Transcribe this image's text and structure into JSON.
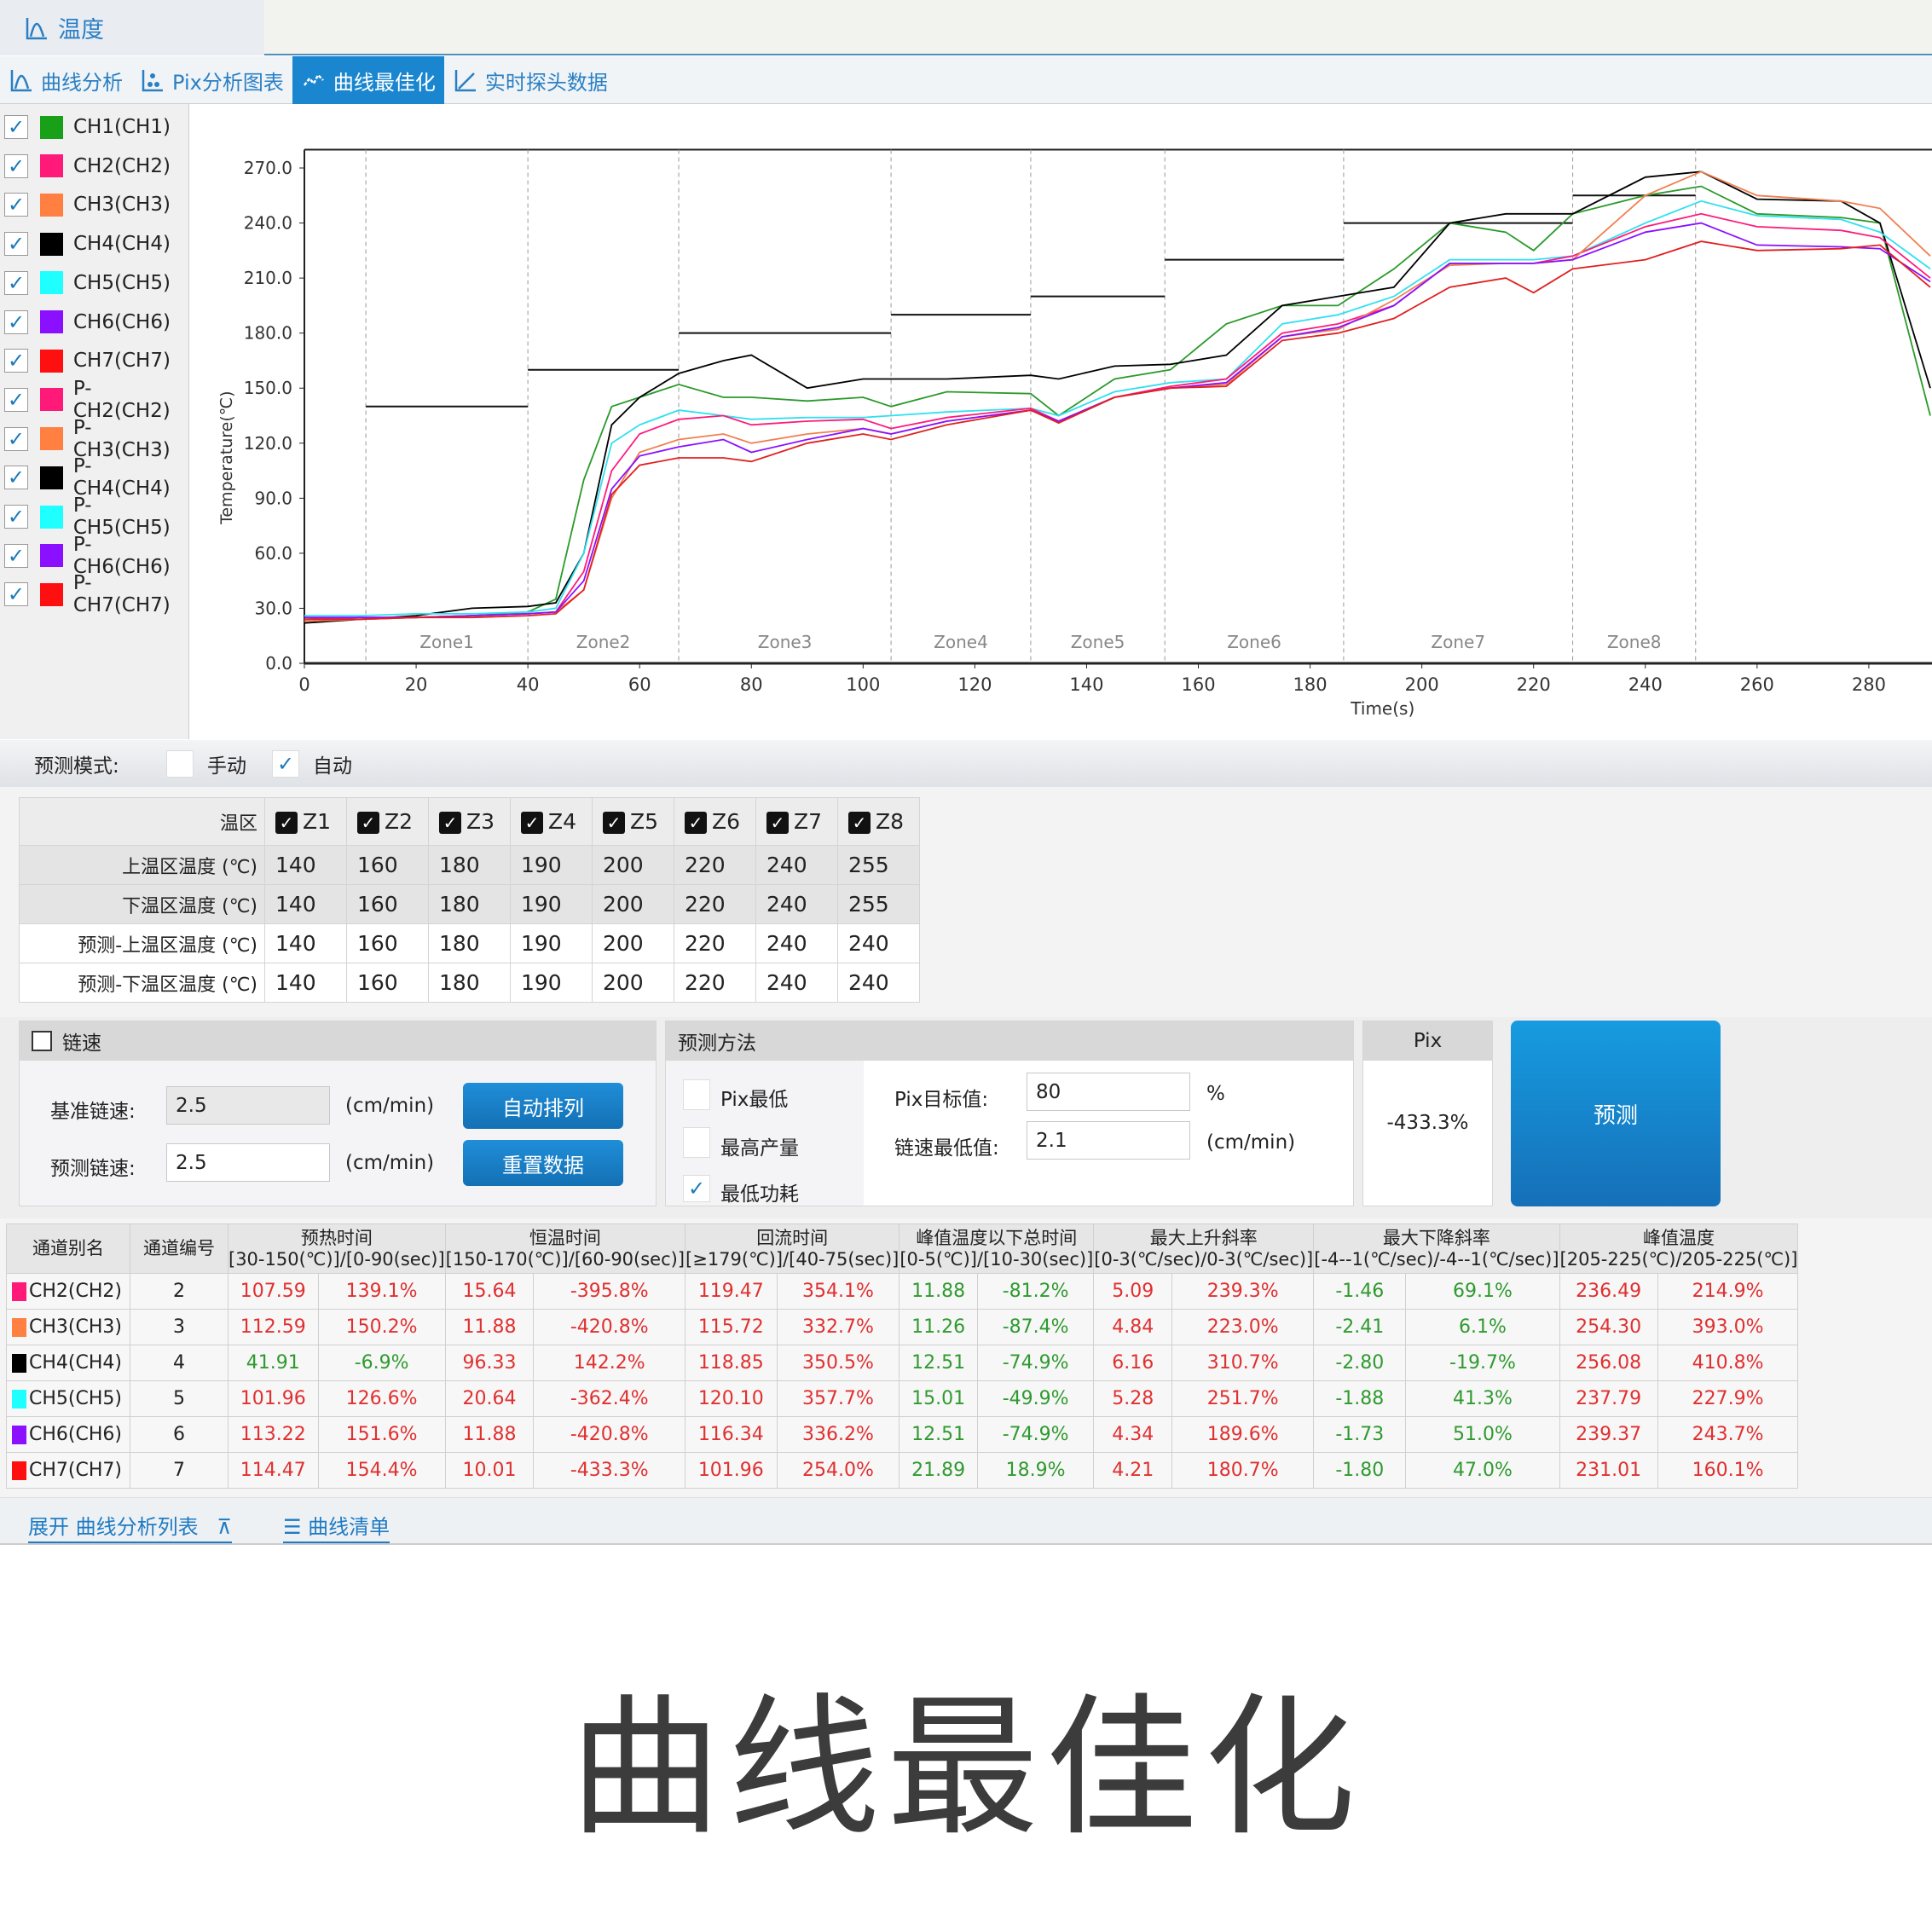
{
  "top_tab": {
    "label": "温度",
    "icon": "curve-icon"
  },
  "tabs": [
    {
      "label": "曲线分析",
      "icon": "curve-icon",
      "active": false
    },
    {
      "label": "Pix分析图表",
      "icon": "scatter-icon",
      "active": false
    },
    {
      "label": "曲线最佳化",
      "icon": "zigzag-icon",
      "active": true
    },
    {
      "label": "实时探头数据",
      "icon": "line-chart-icon",
      "active": false
    }
  ],
  "legend": [
    {
      "label": "CH1(CH1)",
      "color": "#18a018",
      "checked": true
    },
    {
      "label": "CH2(CH2)",
      "color": "#ff1a7a",
      "checked": true
    },
    {
      "label": "CH3(CH3)",
      "color": "#ff8040",
      "checked": true
    },
    {
      "label": "CH4(CH4)",
      "color": "#000000",
      "checked": true
    },
    {
      "label": "CH5(CH5)",
      "color": "#20ffff",
      "checked": true
    },
    {
      "label": "CH6(CH6)",
      "color": "#8a10ff",
      "checked": true
    },
    {
      "label": "CH7(CH7)",
      "color": "#ff1010",
      "checked": true
    },
    {
      "label": "P-CH2(CH2)",
      "color": "#ff1a7a",
      "checked": true
    },
    {
      "label": "P-CH3(CH3)",
      "color": "#ff8040",
      "checked": true
    },
    {
      "label": "P-CH4(CH4)",
      "color": "#000000",
      "checked": true
    },
    {
      "label": "P-CH5(CH5)",
      "color": "#20ffff",
      "checked": true
    },
    {
      "label": "P-CH6(CH6)",
      "color": "#8a10ff",
      "checked": true
    },
    {
      "label": "P-CH7(CH7)",
      "color": "#ff1010",
      "checked": true
    }
  ],
  "chart_data": {
    "type": "line",
    "xlabel": "Time(s)",
    "ylabel": "Temperature(℃)",
    "xlim": [
      0,
      291
    ],
    "ylim": [
      0,
      280
    ],
    "xticks": [
      0,
      20,
      40,
      60,
      80,
      100,
      120,
      140,
      160,
      180,
      200,
      220,
      240,
      260,
      280
    ],
    "yticks": [
      "0.0",
      "30.0",
      "60.0",
      "90.0",
      "120.0",
      "150.0",
      "180.0",
      "210.0",
      "240.0",
      "270.0"
    ],
    "grid": false,
    "zones": [
      {
        "label": "Zone1",
        "start": 11,
        "end": 40,
        "setpoint": 140
      },
      {
        "label": "Zone2",
        "start": 40,
        "end": 67,
        "setpoint": 160
      },
      {
        "label": "Zone3",
        "start": 67,
        "end": 105,
        "setpoint": 180
      },
      {
        "label": "Zone4",
        "start": 105,
        "end": 130,
        "setpoint": 190
      },
      {
        "label": "Zone5",
        "start": 130,
        "end": 154,
        "setpoint": 200
      },
      {
        "label": "Zone6",
        "start": 154,
        "end": 186,
        "setpoint": 220
      },
      {
        "label": "Zone7",
        "start": 186,
        "end": 227,
        "setpoint": 240
      },
      {
        "label": "Zone8",
        "start": 227,
        "end": 249,
        "setpoint": 255
      }
    ],
    "x": [
      0,
      10,
      20,
      30,
      40,
      45,
      50,
      55,
      60,
      67,
      75,
      80,
      90,
      100,
      105,
      115,
      130,
      135,
      145,
      155,
      165,
      175,
      185,
      195,
      205,
      215,
      220,
      227,
      240,
      250,
      260,
      275,
      282,
      291
    ],
    "series": [
      {
        "name": "CH1(CH1)",
        "color": "#2a9a2a",
        "values": [
          25,
          24,
          25,
          26,
          28,
          35,
          100,
          140,
          145,
          152,
          145,
          145,
          143,
          145,
          140,
          148,
          147,
          135,
          155,
          160,
          185,
          195,
          195,
          215,
          240,
          235,
          225,
          245,
          255,
          260,
          245,
          243,
          240,
          135
        ]
      },
      {
        "name": "CH4(CH4)",
        "color": "#000000",
        "values": [
          22,
          24,
          26,
          30,
          31,
          33,
          60,
          130,
          145,
          158,
          165,
          168,
          150,
          155,
          155,
          155,
          157,
          155,
          162,
          163,
          168,
          195,
          200,
          205,
          240,
          245,
          245,
          245,
          265,
          268,
          253,
          252,
          240,
          150
        ]
      },
      {
        "name": "CH5(CH5)",
        "color": "#30e0f0",
        "values": [
          26,
          26,
          27,
          27,
          28,
          30,
          60,
          120,
          130,
          138,
          135,
          133,
          134,
          134,
          135,
          137,
          139,
          135,
          148,
          153,
          155,
          185,
          190,
          200,
          220,
          220,
          220,
          222,
          240,
          252,
          244,
          242,
          235,
          215
        ]
      },
      {
        "name": "CH2(CH2)",
        "color": "#ff1a7a",
        "values": [
          24,
          25,
          25,
          26,
          27,
          28,
          50,
          105,
          125,
          133,
          135,
          130,
          132,
          133,
          128,
          134,
          139,
          132,
          145,
          151,
          155,
          180,
          185,
          195,
          218,
          218,
          218,
          222,
          238,
          245,
          238,
          236,
          232,
          210
        ]
      },
      {
        "name": "CH3(CH3)",
        "color": "#f08050",
        "values": [
          23,
          24,
          25,
          26,
          27,
          28,
          40,
          90,
          115,
          122,
          125,
          120,
          125,
          128,
          125,
          132,
          138,
          132,
          145,
          150,
          152,
          178,
          182,
          198,
          217,
          218,
          218,
          220,
          255,
          268,
          255,
          252,
          248,
          222
        ]
      },
      {
        "name": "CH6(CH6)",
        "color": "#8a10ff",
        "values": [
          25,
          25,
          25,
          26,
          27,
          28,
          45,
          95,
          113,
          118,
          122,
          115,
          122,
          128,
          125,
          132,
          138,
          132,
          145,
          150,
          153,
          178,
          183,
          195,
          218,
          218,
          218,
          220,
          235,
          240,
          228,
          227,
          226,
          208
        ]
      },
      {
        "name": "CH7(CH7)",
        "color": "#e02020",
        "values": [
          24,
          24,
          25,
          25,
          26,
          27,
          40,
          92,
          108,
          112,
          112,
          110,
          120,
          125,
          122,
          130,
          138,
          131,
          145,
          150,
          151,
          176,
          180,
          188,
          205,
          210,
          202,
          215,
          220,
          230,
          225,
          226,
          228,
          205
        ]
      }
    ]
  },
  "mode": {
    "label": "预测模式:",
    "options": [
      {
        "label": "手动",
        "checked": false
      },
      {
        "label": "自动",
        "checked": true
      }
    ]
  },
  "zone_table": {
    "header_label": "温区",
    "zones": [
      "Z1",
      "Z2",
      "Z3",
      "Z4",
      "Z5",
      "Z6",
      "Z7",
      "Z8"
    ],
    "rows": [
      {
        "label": "上温区温度 (℃)",
        "values": [
          "140",
          "160",
          "180",
          "190",
          "200",
          "220",
          "240",
          "255"
        ]
      },
      {
        "label": "下温区温度 (℃)",
        "values": [
          "140",
          "160",
          "180",
          "190",
          "200",
          "220",
          "240",
          "255"
        ]
      },
      {
        "label": "预测-上温区温度 (℃)",
        "values": [
          "140",
          "160",
          "180",
          "190",
          "200",
          "220",
          "240",
          "240"
        ]
      },
      {
        "label": "预测-下温区温度 (℃)",
        "values": [
          "140",
          "160",
          "180",
          "190",
          "200",
          "220",
          "240",
          "240"
        ]
      }
    ]
  },
  "chain": {
    "title": "链速",
    "checked": false,
    "base_label": "基准链速:",
    "base_value": "2.5",
    "pred_label": "预测链速:",
    "pred_value": "2.5",
    "unit": "(cm/min)",
    "auto_btn": "自动排列",
    "reset_btn": "重置数据"
  },
  "method": {
    "title": "预测方法",
    "options": [
      {
        "label": "Pix最低",
        "checked": false
      },
      {
        "label": "最高产量",
        "checked": false
      },
      {
        "label": "最低功耗",
        "checked": true
      }
    ],
    "pix_target_label": "Pix目标值:",
    "pix_target_value": "80",
    "pix_unit": "%",
    "min_speed_label": "链速最低值:",
    "min_speed_value": "2.1",
    "speed_unit": "(cm/min)"
  },
  "pix": {
    "title": "Pix",
    "value": "-433.3%"
  },
  "predict_btn": "预测",
  "results": {
    "col_alias": "通道别名",
    "col_num": "通道编号",
    "groups": [
      {
        "title": "预热时间",
        "range": "[30-150(℃)]/[0-90(sec)]"
      },
      {
        "title": "恒温时间",
        "range": "[150-170(℃)]/[60-90(sec)]"
      },
      {
        "title": "回流时间",
        "range": "[≥179(℃)]/[40-75(sec)]"
      },
      {
        "title": "峰值温度以下总时间",
        "range": "[0-5(℃)]/[10-30(sec)]"
      },
      {
        "title": "最大上升斜率",
        "range": "[0-3(℃/sec)/0-3(℃/sec)]"
      },
      {
        "title": "最大下降斜率",
        "range": "[-4--1(℃/sec)/-4--1(℃/sec)]"
      },
      {
        "title": "峰值温度",
        "range": "[205-225(℃)/205-225(℃)]"
      }
    ],
    "status_colors": {
      "ok": "#2f9a2f",
      "bad": "#e03030"
    },
    "rows": [
      {
        "name": "CH2(CH2)",
        "color": "#ff1a7a",
        "num": "2",
        "values": [
          "107.59",
          "139.1%",
          "15.64",
          "-395.8%",
          "119.47",
          "354.1%",
          "11.88",
          "-81.2%",
          "5.09",
          "239.3%",
          "-1.46",
          "69.1%",
          "236.49",
          "214.9%"
        ],
        "ok": [
          0,
          0,
          0,
          0,
          0,
          0,
          1,
          1,
          0,
          0,
          1,
          1,
          0,
          0
        ]
      },
      {
        "name": "CH3(CH3)",
        "color": "#ff8040",
        "num": "3",
        "values": [
          "112.59",
          "150.2%",
          "11.88",
          "-420.8%",
          "115.72",
          "332.7%",
          "11.26",
          "-87.4%",
          "4.84",
          "223.0%",
          "-2.41",
          "6.1%",
          "254.30",
          "393.0%"
        ],
        "ok": [
          0,
          0,
          0,
          0,
          0,
          0,
          1,
          1,
          0,
          0,
          1,
          1,
          0,
          0
        ]
      },
      {
        "name": "CH4(CH4)",
        "color": "#000000",
        "num": "4",
        "values": [
          "41.91",
          "-6.9%",
          "96.33",
          "142.2%",
          "118.85",
          "350.5%",
          "12.51",
          "-74.9%",
          "6.16",
          "310.7%",
          "-2.80",
          "-19.7%",
          "256.08",
          "410.8%"
        ],
        "ok": [
          1,
          1,
          0,
          0,
          0,
          0,
          1,
          1,
          0,
          0,
          1,
          1,
          0,
          0
        ]
      },
      {
        "name": "CH5(CH5)",
        "color": "#20ffff",
        "num": "5",
        "values": [
          "101.96",
          "126.6%",
          "20.64",
          "-362.4%",
          "120.10",
          "357.7%",
          "15.01",
          "-49.9%",
          "5.28",
          "251.7%",
          "-1.88",
          "41.3%",
          "237.79",
          "227.9%"
        ],
        "ok": [
          0,
          0,
          0,
          0,
          0,
          0,
          1,
          1,
          0,
          0,
          1,
          1,
          0,
          0
        ]
      },
      {
        "name": "CH6(CH6)",
        "color": "#8a10ff",
        "num": "6",
        "values": [
          "113.22",
          "151.6%",
          "11.88",
          "-420.8%",
          "116.34",
          "336.2%",
          "12.51",
          "-74.9%",
          "4.34",
          "189.6%",
          "-1.73",
          "51.0%",
          "239.37",
          "243.7%"
        ],
        "ok": [
          0,
          0,
          0,
          0,
          0,
          0,
          1,
          1,
          0,
          0,
          1,
          1,
          0,
          0
        ]
      },
      {
        "name": "CH7(CH7)",
        "color": "#ff1010",
        "num": "7",
        "values": [
          "114.47",
          "154.4%",
          "10.01",
          "-433.3%",
          "101.96",
          "254.0%",
          "21.89",
          "18.9%",
          "4.21",
          "180.7%",
          "-1.80",
          "47.0%",
          "231.01",
          "160.1%"
        ],
        "ok": [
          0,
          0,
          0,
          0,
          0,
          0,
          1,
          1,
          0,
          0,
          1,
          1,
          0,
          0
        ]
      }
    ]
  },
  "links": {
    "expand": "展开 曲线分析列表",
    "expand_icon": "collapse-up-icon",
    "list": "曲线清单",
    "list_icon": "list-icon"
  },
  "caption": "曲线最佳化"
}
